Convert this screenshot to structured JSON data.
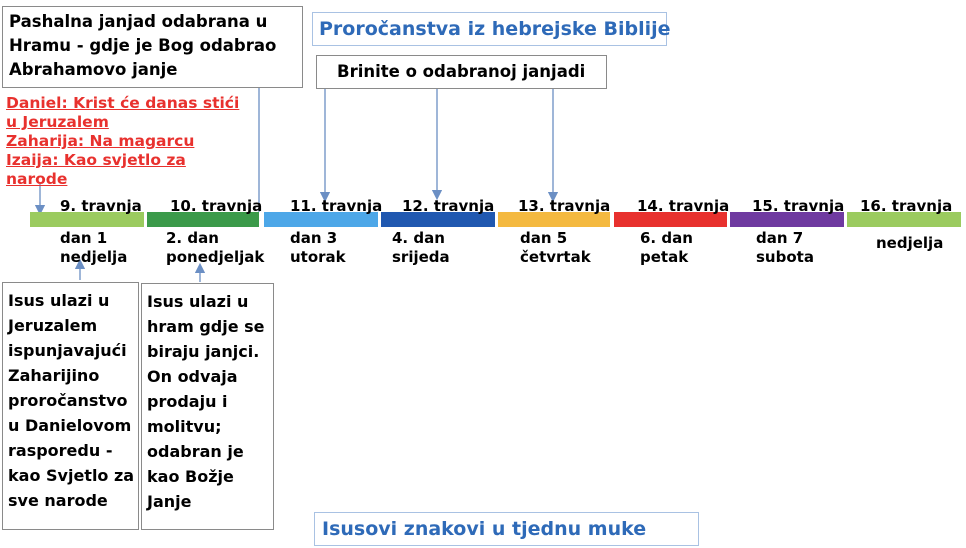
{
  "passover_note": {
    "lines": [
      "Pashalna janjad odabrana u",
      "Hramu - gdje je Bog odabrao",
      "Abrahamovo janje"
    ]
  },
  "title_top": "Proročanstva iz hebrejske Biblije",
  "care_note": "Brinite o odabranoj janjadi",
  "prophecy_lines": [
    "Daniel: Krist će danas stići",
    "u Jeruzalem",
    "Zaharija: Na magarcu",
    "Izaija: Kao svjetlo za",
    "narode"
  ],
  "timeline": [
    {
      "date": "9. travnja",
      "day": "dan 1\nnedjelja",
      "color": "#9bcb5f"
    },
    {
      "date": "10. travnja",
      "day": "2. dan\nponedjeljak",
      "color": "#3b9a4a"
    },
    {
      "date": "11. travnja",
      "day": "dan 3\nutorak",
      "color": "#4da7e8"
    },
    {
      "date": "12. travnja",
      "day": "4. dan\nsrijeda",
      "color": "#2058b0"
    },
    {
      "date": "13. travnja",
      "day": "dan 5\nčetvrtak",
      "color": "#f4b940"
    },
    {
      "date": "14. travnja",
      "day": "6. dan\npetak",
      "color": "#e8312e"
    },
    {
      "date": "15. travnja",
      "day": "dan 7\nsubota",
      "color": "#6f3aa0"
    },
    {
      "date": "16. travnja",
      "day": "nedjelja",
      "color": "#9bcb5f"
    }
  ],
  "jerusalem_desc": "Isus ulazi u\nJeruzalem\nispunjavajući\nZaharijino\nproročanstvo\nu Danielovom\nrasporedu -\nkao Svjetlo za\nsve narode",
  "temple_desc": "Isus ulazi u\nhram gdje se\nbiraju janjci.\nOn odvaja\nprodaju i\nmolitvu;\nodabran je\nkao Božje\nJanje",
  "title_bottom": "Isusovi znakovi u tjednu muke"
}
